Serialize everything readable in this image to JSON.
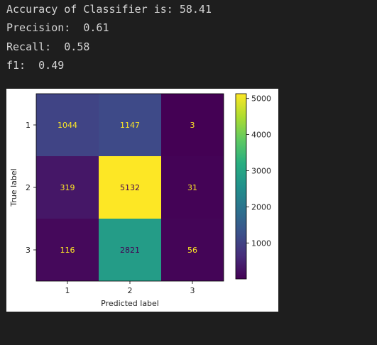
{
  "output": {
    "lines": [
      "Accuracy of Classifier is: 58.41",
      "Precision:  0.61",
      "Recall:  0.58",
      "f1:  0.49"
    ]
  },
  "chart_data": {
    "type": "heatmap",
    "title": "",
    "xlabel": "Predicted label",
    "ylabel": "True label",
    "x_categories": [
      "1",
      "2",
      "3"
    ],
    "y_categories": [
      "1",
      "2",
      "3"
    ],
    "matrix": [
      [
        1044,
        1147,
        3
      ],
      [
        319,
        5132,
        31
      ],
      [
        116,
        2821,
        56
      ]
    ],
    "colormap": "viridis",
    "colorbar": {
      "ticks": [
        1000,
        2000,
        3000,
        4000,
        5000
      ],
      "range": [
        3,
        5132
      ]
    },
    "annotation_colors": {
      "dark_cell_text": "#fde725",
      "light_cell_text": "#440154"
    }
  }
}
